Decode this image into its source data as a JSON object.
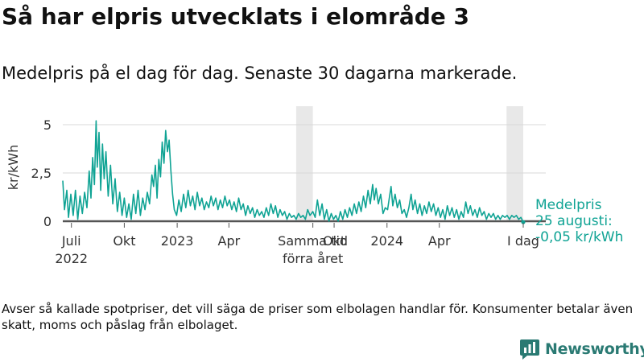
{
  "title": "Så har elpris utvecklats i elområde 3",
  "subtitle": "Medelpris på el dag för dag.  Senaste 30 dagarna markerade.",
  "footnote": "Avser så kallade spotpriser, det vill säga de priser som elbolagen handlar för. Konsumenter betalar även skatt, moms och påslag från elbolaget.",
  "brand": "Newsworthy",
  "colors": {
    "line": "#0fa394",
    "grid": "#d8d8d8",
    "zero": "#555555",
    "band": "#e8e8e8",
    "annotation": "#0fa394"
  },
  "chart_data": {
    "type": "line",
    "ylabel": "kr/kWh",
    "ylim": [
      -0.05,
      5.3
    ],
    "y_ticks": [
      {
        "value": 0,
        "label": "0"
      },
      {
        "value": 2.5,
        "label": "2,5"
      },
      {
        "value": 5,
        "label": "5"
      }
    ],
    "x_start": "2022-06-16",
    "x_end": "2024-08-25",
    "x_ticks": [
      {
        "date": "2022-07-01",
        "label1": "Juli",
        "label2": "2022"
      },
      {
        "date": "2022-10-01",
        "label1": "Okt",
        "label2": ""
      },
      {
        "date": "2023-01-01",
        "label1": "2023",
        "label2": ""
      },
      {
        "date": "2023-04-01",
        "label1": "Apr",
        "label2": ""
      },
      {
        "date": "2023-08-25",
        "label1": "Samma tid",
        "label2": "förra året"
      },
      {
        "date": "2023-10-01",
        "label1": "Okt",
        "label2": ""
      },
      {
        "date": "2024-01-01",
        "label1": "2024",
        "label2": ""
      },
      {
        "date": "2024-04-01",
        "label1": "Apr",
        "label2": ""
      },
      {
        "date": "2024-08-25",
        "label1": "I dag",
        "label2": ""
      }
    ],
    "highlight_periods": [
      {
        "from": "2023-07-27",
        "to": "2023-08-25"
      },
      {
        "from": "2024-07-27",
        "to": "2024-08-25"
      }
    ],
    "series": [
      {
        "points": [
          [
            "2022-06-16",
            2.1
          ],
          [
            "2022-06-19",
            0.6
          ],
          [
            "2022-06-23",
            1.6
          ],
          [
            "2022-06-26",
            0.2
          ],
          [
            "2022-06-30",
            1.4
          ],
          [
            "2022-07-04",
            0.3
          ],
          [
            "2022-07-08",
            1.6
          ],
          [
            "2022-07-12",
            0.1
          ],
          [
            "2022-07-16",
            1.3
          ],
          [
            "2022-07-20",
            0.4
          ],
          [
            "2022-07-24",
            1.5
          ],
          [
            "2022-07-28",
            0.7
          ],
          [
            "2022-08-01",
            2.6
          ],
          [
            "2022-08-04",
            1.2
          ],
          [
            "2022-08-07",
            3.3
          ],
          [
            "2022-08-10",
            1.9
          ],
          [
            "2022-08-13",
            5.2
          ],
          [
            "2022-08-15",
            2.8
          ],
          [
            "2022-08-18",
            4.6
          ],
          [
            "2022-08-21",
            1.6
          ],
          [
            "2022-08-24",
            4.0
          ],
          [
            "2022-08-27",
            2.2
          ],
          [
            "2022-08-30",
            3.6
          ],
          [
            "2022-09-03",
            1.3
          ],
          [
            "2022-09-07",
            2.9
          ],
          [
            "2022-09-11",
            0.9
          ],
          [
            "2022-09-15",
            2.2
          ],
          [
            "2022-09-19",
            0.5
          ],
          [
            "2022-09-23",
            1.5
          ],
          [
            "2022-09-27",
            0.3
          ],
          [
            "2022-10-01",
            1.2
          ],
          [
            "2022-10-05",
            0.2
          ],
          [
            "2022-10-09",
            0.9
          ],
          [
            "2022-10-13",
            0.1
          ],
          [
            "2022-10-17",
            1.4
          ],
          [
            "2022-10-21",
            0.4
          ],
          [
            "2022-10-25",
            1.6
          ],
          [
            "2022-10-29",
            0.3
          ],
          [
            "2022-11-02",
            1.2
          ],
          [
            "2022-11-06",
            0.6
          ],
          [
            "2022-11-10",
            1.5
          ],
          [
            "2022-11-14",
            0.9
          ],
          [
            "2022-11-18",
            2.4
          ],
          [
            "2022-11-21",
            1.8
          ],
          [
            "2022-11-24",
            2.9
          ],
          [
            "2022-11-27",
            1.2
          ],
          [
            "2022-11-30",
            3.2
          ],
          [
            "2022-12-03",
            2.3
          ],
          [
            "2022-12-06",
            4.1
          ],
          [
            "2022-12-09",
            3.0
          ],
          [
            "2022-12-12",
            4.7
          ],
          [
            "2022-12-15",
            3.6
          ],
          [
            "2022-12-18",
            4.2
          ],
          [
            "2022-12-21",
            2.6
          ],
          [
            "2022-12-24",
            1.4
          ],
          [
            "2022-12-27",
            0.6
          ],
          [
            "2022-12-31",
            0.3
          ],
          [
            "2023-01-04",
            1.1
          ],
          [
            "2023-01-08",
            0.5
          ],
          [
            "2023-01-12",
            1.4
          ],
          [
            "2023-01-16",
            0.7
          ],
          [
            "2023-01-20",
            1.6
          ],
          [
            "2023-01-24",
            0.8
          ],
          [
            "2023-01-28",
            1.3
          ],
          [
            "2023-02-01",
            0.6
          ],
          [
            "2023-02-05",
            1.5
          ],
          [
            "2023-02-09",
            0.8
          ],
          [
            "2023-02-13",
            1.2
          ],
          [
            "2023-02-17",
            0.6
          ],
          [
            "2023-02-21",
            1.0
          ],
          [
            "2023-02-25",
            0.7
          ],
          [
            "2023-03-01",
            1.3
          ],
          [
            "2023-03-05",
            0.8
          ],
          [
            "2023-03-09",
            1.2
          ],
          [
            "2023-03-13",
            0.6
          ],
          [
            "2023-03-17",
            1.1
          ],
          [
            "2023-03-21",
            0.7
          ],
          [
            "2023-03-25",
            1.3
          ],
          [
            "2023-03-29",
            0.8
          ],
          [
            "2023-04-02",
            1.1
          ],
          [
            "2023-04-06",
            0.6
          ],
          [
            "2023-04-10",
            1.0
          ],
          [
            "2023-04-14",
            0.5
          ],
          [
            "2023-04-18",
            1.2
          ],
          [
            "2023-04-22",
            0.6
          ],
          [
            "2023-04-26",
            0.9
          ],
          [
            "2023-04-30",
            0.3
          ],
          [
            "2023-05-04",
            0.8
          ],
          [
            "2023-05-08",
            0.4
          ],
          [
            "2023-05-12",
            0.7
          ],
          [
            "2023-05-16",
            0.2
          ],
          [
            "2023-05-20",
            0.6
          ],
          [
            "2023-05-24",
            0.3
          ],
          [
            "2023-05-28",
            0.5
          ],
          [
            "2023-06-01",
            0.2
          ],
          [
            "2023-06-05",
            0.7
          ],
          [
            "2023-06-09",
            0.3
          ],
          [
            "2023-06-13",
            0.9
          ],
          [
            "2023-06-17",
            0.4
          ],
          [
            "2023-06-21",
            0.8
          ],
          [
            "2023-06-25",
            0.2
          ],
          [
            "2023-06-29",
            0.6
          ],
          [
            "2023-07-03",
            0.3
          ],
          [
            "2023-07-07",
            0.5
          ],
          [
            "2023-07-11",
            0.1
          ],
          [
            "2023-07-15",
            0.4
          ],
          [
            "2023-07-19",
            0.2
          ],
          [
            "2023-07-23",
            0.3
          ],
          [
            "2023-07-27",
            0.1
          ],
          [
            "2023-07-31",
            0.4
          ],
          [
            "2023-08-04",
            0.2
          ],
          [
            "2023-08-08",
            0.3
          ],
          [
            "2023-08-12",
            0.1
          ],
          [
            "2023-08-16",
            0.6
          ],
          [
            "2023-08-20",
            0.3
          ],
          [
            "2023-08-25",
            0.5
          ],
          [
            "2023-08-29",
            0.2
          ],
          [
            "2023-09-02",
            1.1
          ],
          [
            "2023-09-06",
            0.3
          ],
          [
            "2023-09-10",
            0.9
          ],
          [
            "2023-09-14",
            0.1
          ],
          [
            "2023-09-18",
            0.6
          ],
          [
            "2023-09-22",
            0.0
          ],
          [
            "2023-09-26",
            0.4
          ],
          [
            "2023-09-30",
            0.1
          ],
          [
            "2023-10-04",
            0.3
          ],
          [
            "2023-10-08",
            0.0
          ],
          [
            "2023-10-12",
            0.5
          ],
          [
            "2023-10-16",
            0.1
          ],
          [
            "2023-10-20",
            0.6
          ],
          [
            "2023-10-24",
            0.2
          ],
          [
            "2023-10-28",
            0.7
          ],
          [
            "2023-11-01",
            0.3
          ],
          [
            "2023-11-05",
            0.9
          ],
          [
            "2023-11-09",
            0.4
          ],
          [
            "2023-11-13",
            1.0
          ],
          [
            "2023-11-17",
            0.5
          ],
          [
            "2023-11-21",
            1.3
          ],
          [
            "2023-11-25",
            0.7
          ],
          [
            "2023-11-29",
            1.6
          ],
          [
            "2023-12-03",
            0.9
          ],
          [
            "2023-12-07",
            1.9
          ],
          [
            "2023-12-10",
            1.1
          ],
          [
            "2023-12-13",
            1.7
          ],
          [
            "2023-12-17",
            0.9
          ],
          [
            "2023-12-21",
            1.4
          ],
          [
            "2023-12-25",
            0.4
          ],
          [
            "2023-12-29",
            0.7
          ],
          [
            "2024-01-02",
            0.6
          ],
          [
            "2024-01-05",
            1.2
          ],
          [
            "2024-01-08",
            1.8
          ],
          [
            "2024-01-11",
            0.8
          ],
          [
            "2024-01-15",
            1.4
          ],
          [
            "2024-01-19",
            0.7
          ],
          [
            "2024-01-23",
            1.1
          ],
          [
            "2024-01-27",
            0.4
          ],
          [
            "2024-01-31",
            0.6
          ],
          [
            "2024-02-04",
            0.2
          ],
          [
            "2024-02-08",
            0.7
          ],
          [
            "2024-02-12",
            1.4
          ],
          [
            "2024-02-15",
            0.6
          ],
          [
            "2024-02-19",
            1.1
          ],
          [
            "2024-02-23",
            0.4
          ],
          [
            "2024-02-27",
            0.9
          ],
          [
            "2024-03-02",
            0.3
          ],
          [
            "2024-03-06",
            0.8
          ],
          [
            "2024-03-10",
            0.4
          ],
          [
            "2024-03-14",
            1.0
          ],
          [
            "2024-03-18",
            0.5
          ],
          [
            "2024-03-22",
            0.9
          ],
          [
            "2024-03-26",
            0.3
          ],
          [
            "2024-03-30",
            0.7
          ],
          [
            "2024-04-03",
            0.2
          ],
          [
            "2024-04-07",
            0.6
          ],
          [
            "2024-04-11",
            0.1
          ],
          [
            "2024-04-15",
            0.8
          ],
          [
            "2024-04-19",
            0.3
          ],
          [
            "2024-04-23",
            0.7
          ],
          [
            "2024-04-27",
            0.2
          ],
          [
            "2024-05-01",
            0.6
          ],
          [
            "2024-05-05",
            0.1
          ],
          [
            "2024-05-09",
            0.5
          ],
          [
            "2024-05-13",
            0.2
          ],
          [
            "2024-05-17",
            1.0
          ],
          [
            "2024-05-21",
            0.4
          ],
          [
            "2024-05-25",
            0.8
          ],
          [
            "2024-05-29",
            0.3
          ],
          [
            "2024-06-02",
            0.6
          ],
          [
            "2024-06-06",
            0.2
          ],
          [
            "2024-06-10",
            0.7
          ],
          [
            "2024-06-14",
            0.3
          ],
          [
            "2024-06-18",
            0.5
          ],
          [
            "2024-06-22",
            0.1
          ],
          [
            "2024-06-26",
            0.4
          ],
          [
            "2024-06-30",
            0.2
          ],
          [
            "2024-07-04",
            0.4
          ],
          [
            "2024-07-08",
            0.1
          ],
          [
            "2024-07-12",
            0.3
          ],
          [
            "2024-07-16",
            0.1
          ],
          [
            "2024-07-20",
            0.3
          ],
          [
            "2024-07-24",
            0.2
          ],
          [
            "2024-07-28",
            0.3
          ],
          [
            "2024-08-01",
            0.1
          ],
          [
            "2024-08-05",
            0.3
          ],
          [
            "2024-08-09",
            0.2
          ],
          [
            "2024-08-13",
            0.3
          ],
          [
            "2024-08-17",
            0.1
          ],
          [
            "2024-08-21",
            0.2
          ],
          [
            "2024-08-25",
            -0.05
          ]
        ]
      }
    ],
    "annotation": {
      "line1": "Medelpris",
      "line2": "25 augusti:",
      "line3": "-0,05 kr/kWh"
    }
  }
}
